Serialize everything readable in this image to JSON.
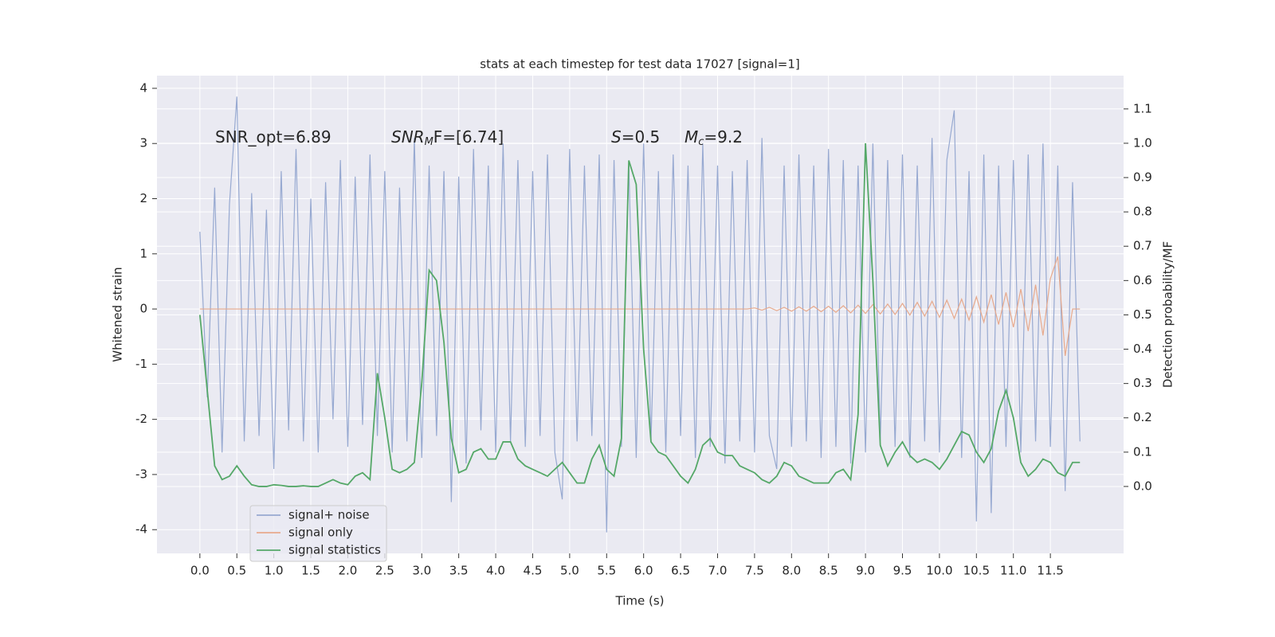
{
  "chart_data": {
    "type": "line",
    "title": "stats at each timestep for test data 17027 [signal=1]",
    "xlabel": "Time (s)",
    "ylabel": "Whitened strain",
    "y2label": "Detection probability/MF",
    "annotations": [
      [
        "SNR_opt=6.89"
      ],
      [
        "SNR",
        "M",
        "F=[6.74]"
      ],
      [
        "S",
        "=0.5"
      ],
      [
        "M",
        "c",
        "=9.2"
      ]
    ],
    "x": [
      0,
      0.1,
      0.2,
      0.3,
      0.4,
      0.5,
      0.6,
      0.7,
      0.8,
      0.9,
      1,
      1.1,
      1.2,
      1.3,
      1.4,
      1.5,
      1.6,
      1.7,
      1.8,
      1.9,
      2,
      2.1,
      2.2,
      2.3,
      2.4,
      2.5,
      2.6,
      2.7,
      2.8,
      2.9,
      3,
      3.1,
      3.2,
      3.3,
      3.4,
      3.5,
      3.6,
      3.7,
      3.8,
      3.9,
      4,
      4.1,
      4.2,
      4.3,
      4.4,
      4.5,
      4.6,
      4.7,
      4.8,
      4.9,
      5,
      5.1,
      5.2,
      5.3,
      5.4,
      5.5,
      5.6,
      5.7,
      5.8,
      5.9,
      6,
      6.1,
      6.2,
      6.3,
      6.4,
      6.5,
      6.6,
      6.7,
      6.8,
      6.9,
      7,
      7.1,
      7.2,
      7.3,
      7.4,
      7.5,
      7.6,
      7.7,
      7.8,
      7.9,
      8,
      8.1,
      8.2,
      8.3,
      8.4,
      8.5,
      8.6,
      8.7,
      8.8,
      8.9,
      9,
      9.1,
      9.2,
      9.3,
      9.4,
      9.5,
      9.6,
      9.7,
      9.8,
      9.9,
      10,
      10.1,
      10.2,
      10.3,
      10.4,
      10.5,
      10.6,
      10.7,
      10.8,
      10.9,
      11,
      11.1,
      11.2,
      11.3,
      11.4,
      11.5,
      11.6,
      11.7,
      11.8,
      11.9
    ],
    "series": [
      {
        "name": "signal+ noise",
        "color": "#97a9d1",
        "values": [
          1.4,
          -1.6,
          2.2,
          -2.6,
          1.9,
          3.85,
          -2.4,
          2.1,
          -2.3,
          1.8,
          -2.9,
          2.5,
          -2.2,
          2.9,
          -2.4,
          2.0,
          -2.6,
          2.3,
          -2.0,
          2.7,
          -2.5,
          2.4,
          -2.1,
          2.8,
          -2.3,
          2.5,
          -2.6,
          2.2,
          -2.4,
          3.1,
          -2.7,
          2.6,
          -2.3,
          2.5,
          -3.5,
          2.4,
          -2.8,
          2.9,
          -2.2,
          2.6,
          -2.6,
          3.0,
          -2.4,
          2.7,
          -2.5,
          2.5,
          -2.3,
          2.8,
          -2.6,
          -3.45,
          2.9,
          -2.4,
          2.6,
          -2.3,
          2.8,
          -4.05,
          2.7,
          -2.5,
          2.6,
          -2.7,
          3.0,
          -2.4,
          2.5,
          -2.6,
          2.8,
          -2.3,
          2.6,
          -2.7,
          3.0,
          -2.5,
          2.6,
          -2.8,
          2.5,
          -2.4,
          2.7,
          -2.6,
          3.1,
          -2.3,
          -2.9,
          2.6,
          -2.5,
          2.8,
          -2.4,
          2.6,
          -2.7,
          2.9,
          -2.5,
          2.7,
          -2.8,
          2.6,
          -2.6,
          3.0,
          -2.4,
          2.7,
          -2.5,
          2.8,
          -2.7,
          2.6,
          -2.4,
          3.1,
          -2.6,
          2.7,
          3.6,
          -2.7,
          2.5,
          -3.85,
          2.8,
          -3.7,
          2.6,
          -2.5,
          2.7,
          -2.6,
          2.8,
          -2.4,
          3.0,
          -2.5,
          2.6,
          -3.3,
          2.3,
          -2.4
        ]
      },
      {
        "name": "signal only",
        "color": "#e7a98c",
        "values": [
          0,
          0,
          0,
          0,
          0,
          0,
          0,
          0,
          0,
          0,
          0,
          0,
          0,
          0,
          0,
          0,
          0,
          0,
          0,
          0,
          0,
          0,
          0,
          0,
          0,
          0,
          0,
          0,
          0,
          0,
          0,
          0,
          0,
          0,
          0,
          0,
          0,
          0,
          0,
          0,
          0,
          0,
          0,
          0,
          0,
          0,
          0,
          0,
          0,
          0,
          0,
          0,
          0,
          0,
          0,
          0,
          0,
          0,
          0,
          0,
          0,
          0,
          0,
          0,
          0,
          0,
          0,
          0,
          0,
          0,
          0,
          0,
          0,
          0,
          0,
          0.02,
          -0.02,
          0.03,
          -0.03,
          0.03,
          -0.04,
          0.04,
          -0.04,
          0.05,
          -0.05,
          0.05,
          -0.06,
          0.06,
          -0.07,
          0.07,
          -0.08,
          0.08,
          -0.09,
          0.09,
          -0.1,
          0.1,
          -0.11,
          0.12,
          -0.13,
          0.14,
          -0.15,
          0.16,
          -0.17,
          0.18,
          -0.2,
          0.22,
          -0.24,
          0.26,
          -0.28,
          0.3,
          -0.33,
          0.36,
          -0.4,
          0.44,
          -0.48,
          0.55,
          0.95,
          -0.85,
          0,
          0
        ]
      },
      {
        "name": "signal statistics",
        "color": "#55a868",
        "axis": "y2",
        "values": [
          0.5,
          0.28,
          0.06,
          0.02,
          0.03,
          0.06,
          0.03,
          0.005,
          0,
          0,
          0.005,
          0.003,
          0,
          0,
          0.002,
          0,
          0,
          0.01,
          0.02,
          0.01,
          0.005,
          0.03,
          0.04,
          0.02,
          0.33,
          0.2,
          0.05,
          0.04,
          0.05,
          0.07,
          0.3,
          0.63,
          0.6,
          0.42,
          0.14,
          0.04,
          0.05,
          0.1,
          0.11,
          0.08,
          0.08,
          0.13,
          0.13,
          0.08,
          0.06,
          0.05,
          0.04,
          0.03,
          0.05,
          0.07,
          0.04,
          0.01,
          0.01,
          0.08,
          0.12,
          0.05,
          0.03,
          0.14,
          0.95,
          0.88,
          0.4,
          0.13,
          0.1,
          0.09,
          0.06,
          0.03,
          0.01,
          0.05,
          0.12,
          0.14,
          0.1,
          0.09,
          0.09,
          0.06,
          0.05,
          0.04,
          0.02,
          0.01,
          0.03,
          0.07,
          0.06,
          0.03,
          0.02,
          0.01,
          0.01,
          0.01,
          0.04,
          0.05,
          0.02,
          0.21,
          1.0,
          0.6,
          0.12,
          0.06,
          0.1,
          0.13,
          0.09,
          0.07,
          0.08,
          0.07,
          0.05,
          0.08,
          0.12,
          0.16,
          0.15,
          0.1,
          0.07,
          0.11,
          0.22,
          0.28,
          0.2,
          0.07,
          0.03,
          0.05,
          0.08,
          0.07,
          0.04,
          0.03,
          0.07,
          0.07
        ]
      }
    ],
    "xlim": [
      -0.58,
      12.49
    ],
    "ylim": [
      -4.43,
      4.23
    ],
    "y2lim": [
      -0.195,
      1.197
    ],
    "xticks": [
      {
        "value": 0,
        "label": "0.0"
      },
      0.5,
      {
        "value": 1,
        "label": "1.0"
      },
      1.5,
      {
        "value": 2,
        "label": "2.0"
      },
      2.5,
      {
        "value": 3,
        "label": "3.0"
      },
      3.5,
      {
        "value": 4,
        "label": "4.0"
      },
      4.5,
      {
        "value": 5,
        "label": "5.0"
      },
      5.5,
      {
        "value": 6,
        "label": "6.0"
      },
      6.5,
      {
        "value": 7,
        "label": "7.0"
      },
      7.5,
      {
        "value": 8,
        "label": "8.0"
      },
      8.5,
      {
        "value": 9,
        "label": "9.0"
      },
      9.5,
      {
        "value": 10,
        "label": "10.0"
      },
      10.5,
      {
        "value": 11,
        "label": "11.0"
      },
      11.5
    ],
    "yticks": [
      -4,
      -3,
      -2,
      -1,
      0,
      1,
      2,
      3,
      4
    ],
    "y2ticks": [
      {
        "value": 0,
        "label": "0.0"
      },
      0.1,
      0.2,
      0.3,
      0.4,
      0.5,
      0.6,
      0.7,
      0.8,
      0.9,
      {
        "value": 1,
        "label": "1.0"
      },
      1.1
    ],
    "grid": true,
    "legend": "lower left"
  }
}
